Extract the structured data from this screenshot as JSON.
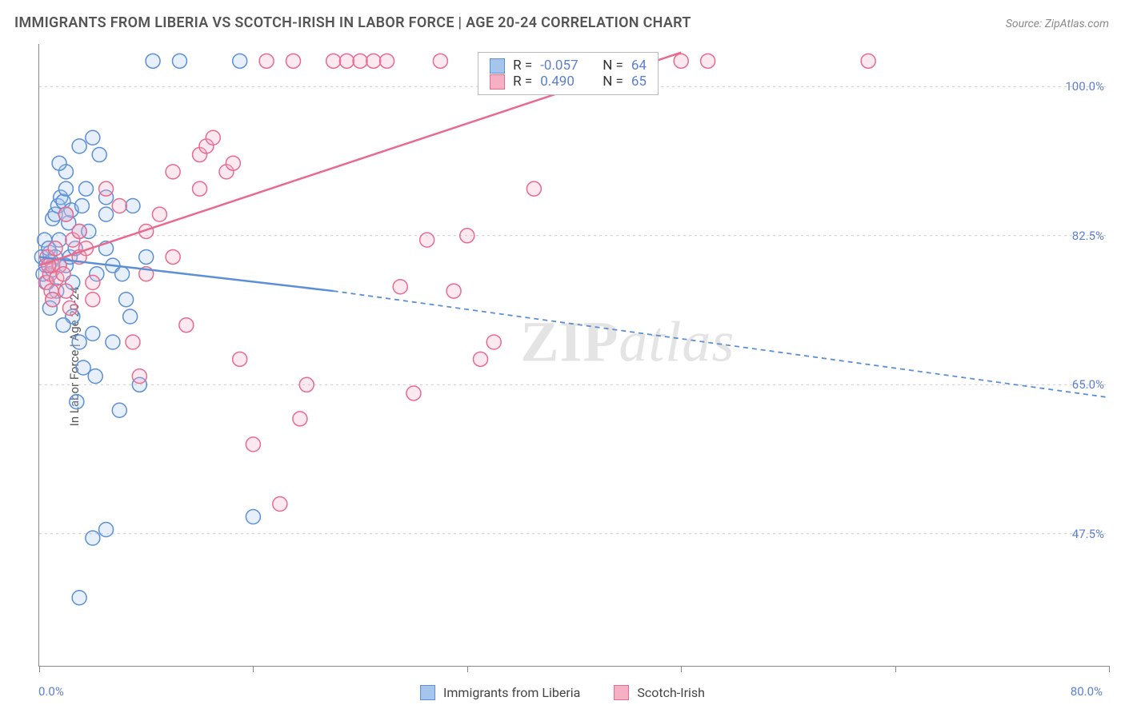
{
  "title": "IMMIGRANTS FROM LIBERIA VS SCOTCH-IRISH IN LABOR FORCE | AGE 20-24 CORRELATION CHART",
  "source": "Source: ZipAtlas.com",
  "y_axis_label": "In Labor Force | Age 20-24",
  "watermark_zip": "ZIP",
  "watermark_atlas": "atlas",
  "chart": {
    "type": "scatter-with-regression",
    "background_color": "#ffffff",
    "grid_color": "#cccccc",
    "axis_color": "#888888",
    "label_color": "#5b7fd6",
    "title_fontsize": 18,
    "label_fontsize": 15,
    "xlim": [
      0,
      80
    ],
    "ylim": [
      32,
      105
    ],
    "x_ticks": [
      0,
      16,
      32,
      48,
      64,
      80
    ],
    "x_tick_labels": {
      "0": "0.0%",
      "80": "80.0%"
    },
    "y_gridlines": [
      47.5,
      65.0,
      82.5,
      100.0
    ],
    "y_tick_labels": {
      "47.5": "47.5%",
      "65.0": "65.0%",
      "82.5": "82.5%",
      "100.0": "100.0%"
    },
    "marker_radius": 9,
    "marker_stroke_width": 1.5,
    "marker_fill_opacity": 0.28,
    "line_width_solid": 2.5,
    "line_width_dash": 1.8,
    "dash_pattern": "6,5",
    "series": [
      {
        "name": "Immigrants from Liberia",
        "color_stroke": "#5b8fd6",
        "color_fill": "#a5c5ec",
        "r_value": "-0.057",
        "n_value": "64",
        "regression": {
          "x1": 0,
          "y1": 80,
          "x2": 22,
          "y2": 76,
          "extend_x": 80,
          "extend_y": 63.5
        },
        "points": [
          [
            0.2,
            80
          ],
          [
            0.5,
            79
          ],
          [
            0.6,
            77
          ],
          [
            0.8,
            80.5
          ],
          [
            0.3,
            78
          ],
          [
            0.4,
            82
          ],
          [
            0.7,
            81
          ],
          [
            0.9,
            79.5
          ],
          [
            1.0,
            78.5
          ],
          [
            1.2,
            80
          ],
          [
            1.3,
            76
          ],
          [
            1.5,
            82
          ],
          [
            1.0,
            84.5
          ],
          [
            1.2,
            85
          ],
          [
            1.4,
            86
          ],
          [
            1.6,
            87
          ],
          [
            1.8,
            86.5
          ],
          [
            2.0,
            88
          ],
          [
            2.2,
            84
          ],
          [
            2.4,
            85.5
          ],
          [
            2.0,
            79
          ],
          [
            2.3,
            80
          ],
          [
            2.7,
            81
          ],
          [
            2.5,
            77
          ],
          [
            3.0,
            83
          ],
          [
            3.2,
            86
          ],
          [
            3.5,
            88
          ],
          [
            3.0,
            93
          ],
          [
            4.0,
            94
          ],
          [
            4.5,
            92
          ],
          [
            5.0,
            85
          ],
          [
            5.5,
            70
          ],
          [
            4.0,
            71
          ],
          [
            4.3,
            78
          ],
          [
            2.5,
            73
          ],
          [
            3.0,
            70
          ],
          [
            3.3,
            67
          ],
          [
            4.2,
            66
          ],
          [
            2.8,
            63
          ],
          [
            6.0,
            62
          ],
          [
            6.5,
            75
          ],
          [
            6.8,
            73
          ],
          [
            7.0,
            86
          ],
          [
            8.5,
            103
          ],
          [
            10.5,
            103
          ],
          [
            15.0,
            103
          ],
          [
            4.0,
            47
          ],
          [
            5.0,
            48
          ],
          [
            16.0,
            49.5
          ],
          [
            3.0,
            40
          ],
          [
            2.0,
            85
          ],
          [
            3.7,
            83
          ],
          [
            5.0,
            81
          ],
          [
            5.5,
            79
          ],
          [
            6.2,
            78
          ],
          [
            5.0,
            87
          ],
          [
            7.5,
            65
          ],
          [
            8.0,
            80
          ],
          [
            2.0,
            90
          ],
          [
            1.5,
            91
          ],
          [
            1.0,
            75
          ],
          [
            0.8,
            74
          ],
          [
            1.8,
            72
          ],
          [
            1.5,
            79
          ]
        ]
      },
      {
        "name": "Scotch-Irish",
        "color_stroke": "#e86b8f",
        "color_fill": "#f5b0c4",
        "r_value": "0.490",
        "n_value": "65",
        "regression": {
          "x1": 0,
          "y1": 79,
          "x2": 48,
          "y2": 104,
          "extend_x": 48,
          "extend_y": 104
        },
        "points": [
          [
            0.5,
            77
          ],
          [
            0.8,
            78
          ],
          [
            1.0,
            79
          ],
          [
            0.6,
            80
          ],
          [
            1.2,
            81
          ],
          [
            1.5,
            79
          ],
          [
            0.9,
            76
          ],
          [
            1.3,
            77.5
          ],
          [
            1.8,
            78
          ],
          [
            2.0,
            85
          ],
          [
            2.3,
            74
          ],
          [
            2.5,
            82
          ],
          [
            3.0,
            80
          ],
          [
            3.5,
            81
          ],
          [
            4.0,
            75
          ],
          [
            5.0,
            88
          ],
          [
            6.0,
            86
          ],
          [
            7.0,
            70
          ],
          [
            7.5,
            66
          ],
          [
            8.0,
            83
          ],
          [
            9.0,
            85
          ],
          [
            10.0,
            80
          ],
          [
            11.0,
            72
          ],
          [
            12.0,
            92
          ],
          [
            12.5,
            93
          ],
          [
            13.0,
            94
          ],
          [
            14.0,
            90
          ],
          [
            14.5,
            91
          ],
          [
            15.0,
            68
          ],
          [
            16.0,
            58
          ],
          [
            17.0,
            103
          ],
          [
            18.0,
            51
          ],
          [
            19.0,
            103
          ],
          [
            19.5,
            61
          ],
          [
            20.0,
            65
          ],
          [
            22.0,
            103
          ],
          [
            23.0,
            103
          ],
          [
            24.0,
            103
          ],
          [
            25.0,
            103
          ],
          [
            26.0,
            103
          ],
          [
            27.0,
            76.5
          ],
          [
            28,
            64
          ],
          [
            29,
            82
          ],
          [
            30,
            103
          ],
          [
            31,
            76
          ],
          [
            32,
            82.5
          ],
          [
            33,
            68
          ],
          [
            34,
            70
          ],
          [
            35,
            103
          ],
          [
            37,
            88
          ],
          [
            39,
            103
          ],
          [
            42,
            103
          ],
          [
            43,
            103
          ],
          [
            45,
            103
          ],
          [
            48,
            103
          ],
          [
            50,
            103
          ],
          [
            62,
            103
          ],
          [
            10,
            90
          ],
          [
            12,
            88
          ],
          [
            8,
            78
          ],
          [
            4,
            77
          ],
          [
            3,
            83
          ],
          [
            2,
            76
          ],
          [
            1,
            75
          ],
          [
            0.7,
            79
          ]
        ]
      }
    ],
    "legend_bottom": [
      {
        "label": "Immigrants from Liberia",
        "fill": "#a5c5ec",
        "stroke": "#5b8fd6"
      },
      {
        "label": "Scotch-Irish",
        "fill": "#f5b0c4",
        "stroke": "#e86b8f"
      }
    ]
  }
}
